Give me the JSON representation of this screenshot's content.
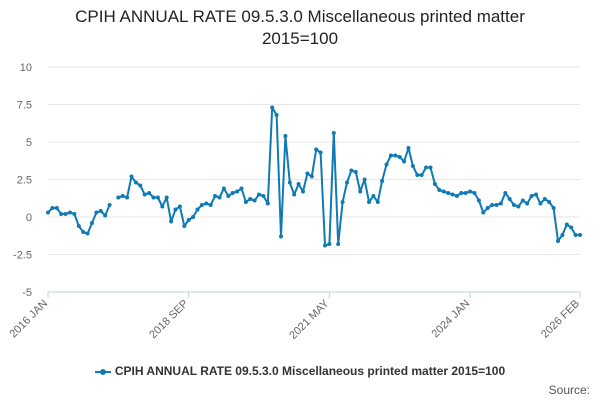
{
  "page": {
    "title_line1": "CPIH ANNUAL RATE 09.5.3.0 Miscellaneous printed matter",
    "title_line2": "2015=100",
    "source_label": "Source:"
  },
  "chart_data": {
    "type": "line",
    "title": "CPIH ANNUAL RATE 09.5.3.0 Miscellaneous printed matter 2015=100",
    "xlabel": "",
    "ylabel": "",
    "ylim": [
      -5,
      10
    ],
    "yticks": [
      -5,
      -2.5,
      0,
      2.5,
      5,
      7.5,
      10
    ],
    "ytick_labels": [
      "-5",
      "-2.5",
      "0",
      "2.5",
      "5",
      "7.5",
      "10"
    ],
    "xtick_labels": [
      "2016 JAN",
      "2018 SEP",
      "2021 MAY",
      "2024 JAN",
      "2026 FEB"
    ],
    "xtick_index": [
      0,
      32,
      64,
      96,
      121
    ],
    "grid": true,
    "legend_position": "bottom",
    "color": "#0f7ab4",
    "series": [
      {
        "name": "CPIH ANNUAL RATE 09.5.3.0 Miscellaneous printed matter 2015=100",
        "start": "2016 JAN",
        "frequency": "monthly",
        "values": [
          0.3,
          0.6,
          0.6,
          0.2,
          0.2,
          0.3,
          0.2,
          -0.6,
          -1.0,
          -1.1,
          -0.4,
          0.3,
          0.4,
          0.1,
          0.8,
          null,
          1.3,
          1.4,
          1.3,
          2.7,
          2.3,
          2.1,
          1.5,
          1.6,
          1.3,
          1.3,
          0.7,
          1.3,
          -0.3,
          0.5,
          0.7,
          -0.6,
          -0.2,
          0.0,
          0.5,
          0.8,
          0.9,
          0.8,
          1.4,
          1.3,
          1.9,
          1.4,
          1.6,
          1.7,
          1.9,
          1.0,
          1.2,
          1.1,
          1.5,
          1.4,
          0.9,
          7.3,
          6.8,
          -1.3,
          5.4,
          2.3,
          1.5,
          2.2,
          1.7,
          2.9,
          2.7,
          4.5,
          4.3,
          -1.9,
          -1.8,
          5.6,
          -1.8,
          1.0,
          2.3,
          3.1,
          3.0,
          1.7,
          2.5,
          1.0,
          1.4,
          1.0,
          2.4,
          3.5,
          4.1,
          4.1,
          4.0,
          3.7,
          4.6,
          3.4,
          2.8,
          2.8,
          3.3,
          3.3,
          2.2,
          1.8,
          1.7,
          1.6,
          1.5,
          1.4,
          1.6,
          1.6,
          1.7,
          1.6,
          1.1,
          0.3,
          0.6,
          0.8,
          0.8,
          0.9,
          1.6,
          1.2,
          0.8,
          0.7,
          1.1,
          0.9,
          1.4,
          1.5,
          0.9,
          1.2,
          1.0,
          0.6,
          -1.6,
          -1.2,
          -0.5,
          -0.7,
          -1.2,
          -1.2
        ]
      }
    ]
  }
}
